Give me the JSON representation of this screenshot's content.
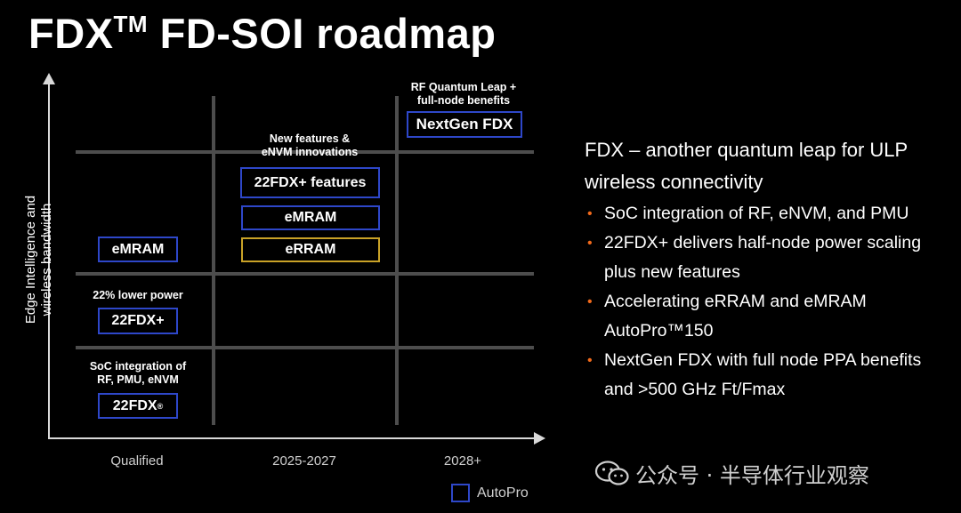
{
  "title": {
    "main": "FDX",
    "tm": "TM",
    "rest": " FD-SOI roadmap"
  },
  "y_axis": {
    "line1": "Edge Intelligence and",
    "line2": "wireless bandwidth"
  },
  "x_axis": {
    "labels": [
      "Qualified",
      "2025-2027",
      "2028+"
    ]
  },
  "notes": {
    "rf_leap": [
      "RF Quantum Leap +",
      "full-node benefits"
    ],
    "new_features": [
      "New features &",
      "eNVM innovations"
    ],
    "lower_power": [
      "22% lower power"
    ],
    "soc": [
      "SoC integration of",
      "RF, PMU, eNVM"
    ]
  },
  "boxes": {
    "nextgen": "NextGen FDX",
    "fdx_plus_features": "22FDX+ features",
    "emram_mid": "eMRAM",
    "erram": "eRRAM",
    "emram_left": "eMRAM",
    "fdx_plus": "22FDX+",
    "fdx": "22FDX",
    "fdx_reg": "®"
  },
  "legend": {
    "label": "AutoPro",
    "color": "#2e47c9"
  },
  "colors": {
    "autopro_border": "#2e47c9",
    "erram_border": "#c9a227",
    "bullet": "#f26a1b"
  },
  "right_panel": {
    "heading": "FDX – another quantum leap for ULP wireless connectivity",
    "bullets": [
      "SoC integration of RF, eNVM, and PMU",
      "22FDX+ delivers half-node power scaling plus new features",
      "Accelerating eRRAM and eMRAM AutoPro™150",
      "NextGen FDX with full node PPA benefits and >500 GHz Ft/Fmax"
    ]
  },
  "watermark": "公众号 · 半导体行业观察"
}
